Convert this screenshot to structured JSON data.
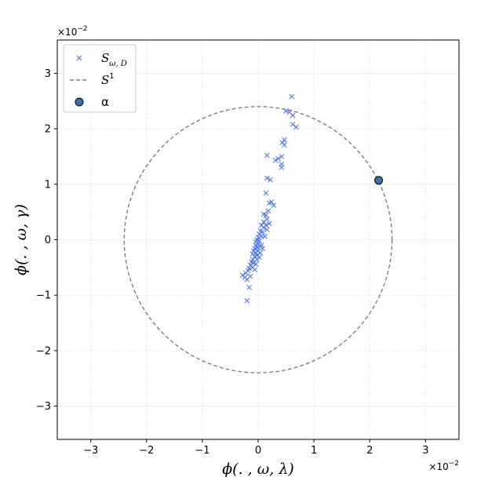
{
  "chart_data": {
    "type": "scatter",
    "title": "",
    "xlabel": "ϕ(. , ω, λ)",
    "ylabel": "ϕ(. , ω, γ)",
    "x_offset_label": {
      "base": "×10",
      "exp": "−2"
    },
    "y_offset_label": {
      "base": "×10",
      "exp": "−2"
    },
    "xlim": [
      -3.6,
      3.6
    ],
    "ylim": [
      -3.6,
      3.6
    ],
    "xticks": [
      -3,
      -2,
      -1,
      0,
      1,
      2,
      3
    ],
    "yticks": [
      -3,
      -2,
      -1,
      0,
      1,
      2,
      3
    ],
    "xtick_labels": [
      "−3",
      "−2",
      "−1",
      "0",
      "1",
      "2",
      "3"
    ],
    "ytick_labels": [
      "−3",
      "−2",
      "−1",
      "0",
      "1",
      "2",
      "3"
    ],
    "grid": true,
    "legend_position": "top-left",
    "legend": [
      {
        "key": "samples",
        "label_main": "S",
        "label_sub": "ω, D",
        "marker": "x",
        "color": "#4169e1"
      },
      {
        "key": "circle",
        "label_main": "S",
        "label_sup": "1",
        "marker": "dashed-line",
        "color": "#808080"
      },
      {
        "key": "alpha",
        "label_main": "α",
        "marker": "circle",
        "color": "#3a72b0"
      }
    ],
    "series": [
      {
        "name": "S_{ω,D}",
        "marker": "x",
        "color": "#4169e1",
        "points": [
          [
            0.6,
            2.58
          ],
          [
            0.5,
            2.32
          ],
          [
            0.56,
            2.3
          ],
          [
            0.62,
            2.24
          ],
          [
            0.62,
            2.08
          ],
          [
            0.68,
            2.03
          ],
          [
            0.47,
            1.8
          ],
          [
            0.47,
            1.71
          ],
          [
            0.43,
            1.75
          ],
          [
            0.16,
            1.52
          ],
          [
            0.42,
            1.5
          ],
          [
            0.36,
            1.46
          ],
          [
            0.31,
            1.43
          ],
          [
            0.42,
            1.36
          ],
          [
            0.42,
            1.3
          ],
          [
            0.16,
            1.11
          ],
          [
            0.22,
            1.08
          ],
          [
            0.14,
            0.84
          ],
          [
            0.24,
            0.68
          ],
          [
            0.2,
            0.66
          ],
          [
            0.28,
            0.62
          ],
          [
            0.18,
            0.52
          ],
          [
            0.1,
            0.46
          ],
          [
            0.14,
            0.44
          ],
          [
            0.16,
            0.37
          ],
          [
            0.1,
            0.32
          ],
          [
            0.2,
            0.29
          ],
          [
            0.06,
            0.26
          ],
          [
            0.1,
            0.22
          ],
          [
            0.16,
            0.18
          ],
          [
            0.04,
            0.16
          ],
          [
            0.08,
            0.14
          ],
          [
            0.02,
            0.1
          ],
          [
            0.06,
            0.06
          ],
          [
            0.0,
            0.04
          ],
          [
            -0.02,
            0.0
          ],
          [
            0.02,
            -0.02
          ],
          [
            -0.04,
            -0.04
          ],
          [
            0.0,
            -0.08
          ],
          [
            -0.04,
            -0.1
          ],
          [
            -0.02,
            -0.14
          ],
          [
            -0.06,
            -0.16
          ],
          [
            0.04,
            -0.12
          ],
          [
            0.08,
            -0.16
          ],
          [
            0.0,
            -0.2
          ],
          [
            -0.04,
            -0.24
          ],
          [
            -0.08,
            -0.2
          ],
          [
            -0.02,
            -0.28
          ],
          [
            -0.06,
            -0.3
          ],
          [
            -0.1,
            -0.26
          ],
          [
            0.04,
            -0.24
          ],
          [
            -0.12,
            -0.4
          ],
          [
            -0.08,
            -0.42
          ],
          [
            -0.04,
            -0.44
          ],
          [
            -0.14,
            -0.46
          ],
          [
            -0.1,
            -0.5
          ],
          [
            -0.06,
            -0.54
          ],
          [
            -0.16,
            -0.52
          ],
          [
            -0.18,
            -0.56
          ],
          [
            -0.22,
            -0.6
          ],
          [
            -0.28,
            -0.64
          ],
          [
            -0.24,
            -0.68
          ],
          [
            -0.2,
            -0.72
          ],
          [
            -0.14,
            -0.66
          ],
          [
            -0.16,
            -0.86
          ],
          [
            -0.2,
            -1.1
          ],
          [
            -0.1,
            -0.36
          ],
          [
            -0.02,
            -0.36
          ],
          [
            0.02,
            -0.32
          ],
          [
            0.06,
            -0.1
          ],
          [
            0.12,
            0.06
          ],
          [
            0.14,
            0.26
          ]
        ]
      },
      {
        "name": "S^1",
        "marker": "dashed-line",
        "color": "#808080",
        "circle": {
          "cx": 0.0,
          "cy": 0.0,
          "r": 2.4
        }
      },
      {
        "name": "α",
        "marker": "circle",
        "color": "#3a72b0",
        "points": [
          [
            2.16,
            1.07
          ]
        ]
      }
    ]
  }
}
